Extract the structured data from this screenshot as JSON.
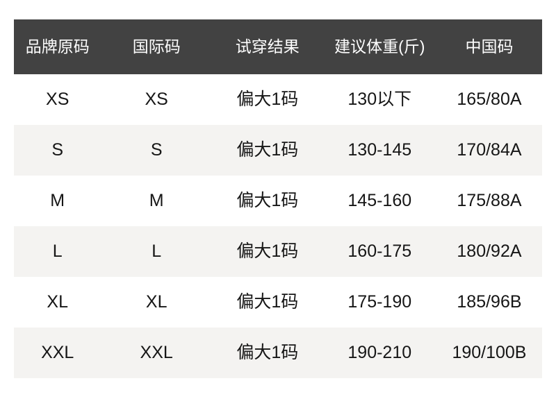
{
  "colors": {
    "page_bg": "#ffffff",
    "header_bg": "#424242",
    "header_text": "#ffffff",
    "row_bg": "#ffffff",
    "row_alt_bg": "#f4f3f1",
    "cell_text": "#161616"
  },
  "size_chart": {
    "columns": [
      "品牌原码",
      "国际码",
      "试穿结果",
      "建议体重(斤)",
      "中国码"
    ],
    "rows": [
      [
        "XS",
        "XS",
        "偏大1码",
        "130以下",
        "165/80A"
      ],
      [
        "S",
        "S",
        "偏大1码",
        "130-145",
        "170/84A"
      ],
      [
        "M",
        "M",
        "偏大1码",
        "145-160",
        "175/88A"
      ],
      [
        "L",
        "L",
        "偏大1码",
        "160-175",
        "180/92A"
      ],
      [
        "XL",
        "XL",
        "偏大1码",
        "175-190",
        "185/96B"
      ],
      [
        "XXL",
        "XXL",
        "偏大1码",
        "190-210",
        "190/100B"
      ]
    ]
  }
}
